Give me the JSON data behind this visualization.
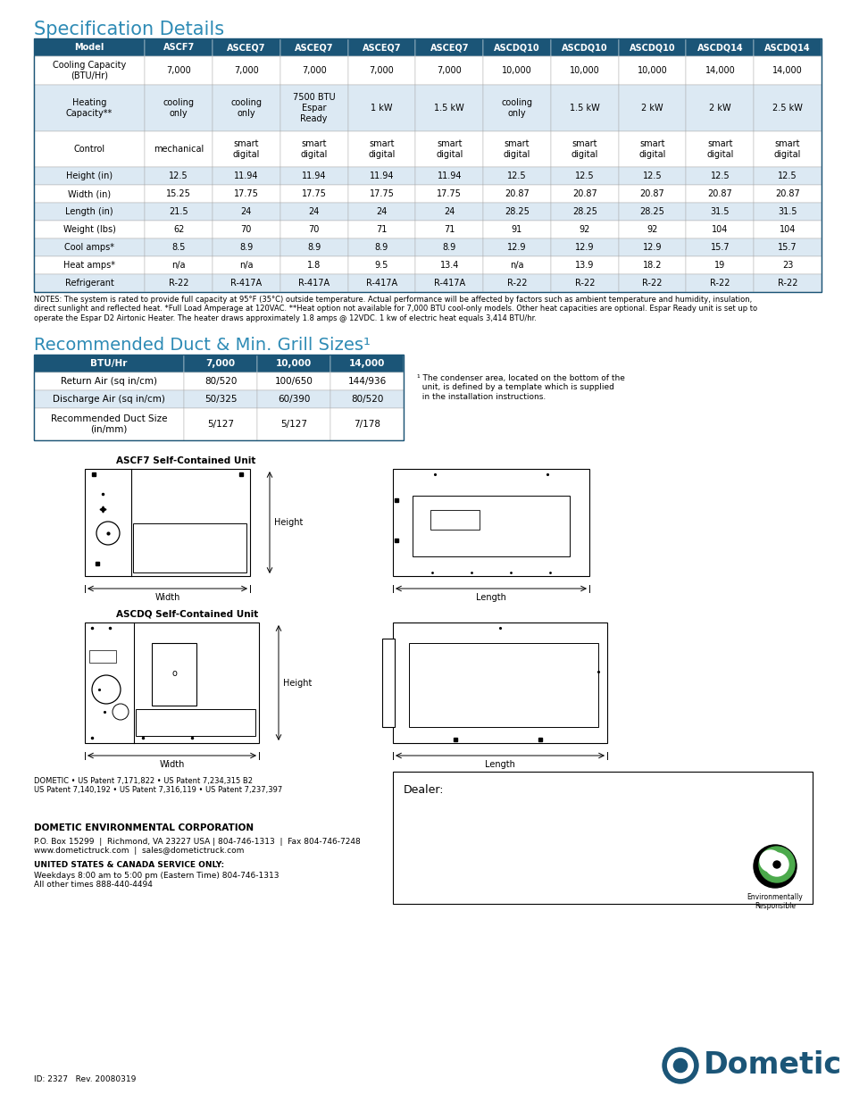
{
  "title1": "Specification Details",
  "title2": "Recommended Duct & Min. Grill Sizes¹",
  "header_bg": "#1b5577",
  "header_text": "#ffffff",
  "alt_row_bg": "#dce9f3",
  "white_bg": "#ffffff",
  "border_color": "#888888",
  "title_color": "#2e8bb5",
  "spec_headers": [
    "Model",
    "ASCF7",
    "ASCEQ7",
    "ASCEQ7",
    "ASCEQ7",
    "ASCEQ7",
    "ASCDQ10",
    "ASCDQ10",
    "ASCDQ10",
    "ASCDQ14",
    "ASCDQ14"
  ],
  "spec_rows": [
    [
      "Cooling Capacity\n(BTU/Hr)",
      "7,000",
      "7,000",
      "7,000",
      "7,000",
      "7,000",
      "10,000",
      "10,000",
      "10,000",
      "14,000",
      "14,000"
    ],
    [
      "Heating\nCapacity**",
      "cooling\nonly",
      "cooling\nonly",
      "7500 BTU\nEspar\nReady",
      "1 kW",
      "1.5 kW",
      "cooling\nonly",
      "1.5 kW",
      "2 kW",
      "2 kW",
      "2.5 kW"
    ],
    [
      "Control",
      "mechanical",
      "smart\ndigital",
      "smart\ndigital",
      "smart\ndigital",
      "smart\ndigital",
      "smart\ndigital",
      "smart\ndigital",
      "smart\ndigital",
      "smart\ndigital",
      "smart\ndigital"
    ],
    [
      "Height (in)",
      "12.5",
      "11.94",
      "11.94",
      "11.94",
      "11.94",
      "12.5",
      "12.5",
      "12.5",
      "12.5",
      "12.5"
    ],
    [
      "Width (in)",
      "15.25",
      "17.75",
      "17.75",
      "17.75",
      "17.75",
      "20.87",
      "20.87",
      "20.87",
      "20.87",
      "20.87"
    ],
    [
      "Length (in)",
      "21.5",
      "24",
      "24",
      "24",
      "24",
      "28.25",
      "28.25",
      "28.25",
      "31.5",
      "31.5"
    ],
    [
      "Weight (lbs)",
      "62",
      "70",
      "70",
      "71",
      "71",
      "91",
      "92",
      "92",
      "104",
      "104"
    ],
    [
      "Cool amps*",
      "8.5",
      "8.9",
      "8.9",
      "8.9",
      "8.9",
      "12.9",
      "12.9",
      "12.9",
      "15.7",
      "15.7"
    ],
    [
      "Heat amps*",
      "n/a",
      "n/a",
      "1.8",
      "9.5",
      "13.4",
      "n/a",
      "13.9",
      "18.2",
      "19",
      "23"
    ],
    [
      "Refrigerant",
      "R-22",
      "R-417A",
      "R-417A",
      "R-417A",
      "R-417A",
      "R-22",
      "R-22",
      "R-22",
      "R-22",
      "R-22"
    ]
  ],
  "notes_text": "NOTES: The system is rated to provide full capacity at 95°F (35°C) outside temperature. Actual performance will be affected by factors such as ambient temperature and humidity, insulation,\ndirect sunlight and reflected heat. *Full Load Amperage at 120VAC. **Heat option not available for 7,000 BTU cool-only models. Other heat capacities are optional. Espar Ready unit is set up to\noperate the Espar D2 Airtonic Heater. The heater draws approximately 1.8 amps @ 12VDC. 1 kw of electric heat equals 3,414 BTU/hr.",
  "duct_headers": [
    "BTU/Hr",
    "7,000",
    "10,000",
    "14,000"
  ],
  "duct_rows": [
    [
      "Return Air (sq in/cm)",
      "80/520",
      "100/650",
      "144/936"
    ],
    [
      "Discharge Air (sq in/cm)",
      "50/325",
      "60/390",
      "80/520"
    ],
    [
      "Recommended Duct Size\n(in/mm)",
      "5/127",
      "5/127",
      "7/178"
    ]
  ],
  "footnote": "¹ The condenser area, located on the bottom of the\n  unit, is defined by a template which is supplied\n  in the installation instructions.",
  "patent_text": "DOMETIC • US Patent 7,171,822 • US Patent 7,234,315 B2\nUS Patent 7,140,192 • US Patent 7,316,119 • US Patent 7,237,397",
  "company_name": "DOMETIC ENVIRONMENTAL CORPORATION",
  "company_address": "P.O. Box 15299  |  Richmond, VA 23227 USA | 804-746-1313  |  Fax 804-746-7248\nwww.dometictruck.com  |  sales@dometictruck.com",
  "service_header": "UNITED STATES & CANADA SERVICE ONLY:",
  "service_text": "Weekdays 8:00 am to 5:00 pm (Eastern Time) 804-746-1313\nAll other times 888-440-4494",
  "id_text": "ID: 2327   Rev. 20080319",
  "dealer_text": "Dealer:",
  "env_text": "Environmentally\nResponsible",
  "dometic_logo_text": "Dometic",
  "ascf7_label": "ASCF7 Self-Contained Unit",
  "ascdq_label": "ASCDQ Self-Contained Unit",
  "width_label": "Width",
  "height_label": "Height",
  "length_label": "Length"
}
